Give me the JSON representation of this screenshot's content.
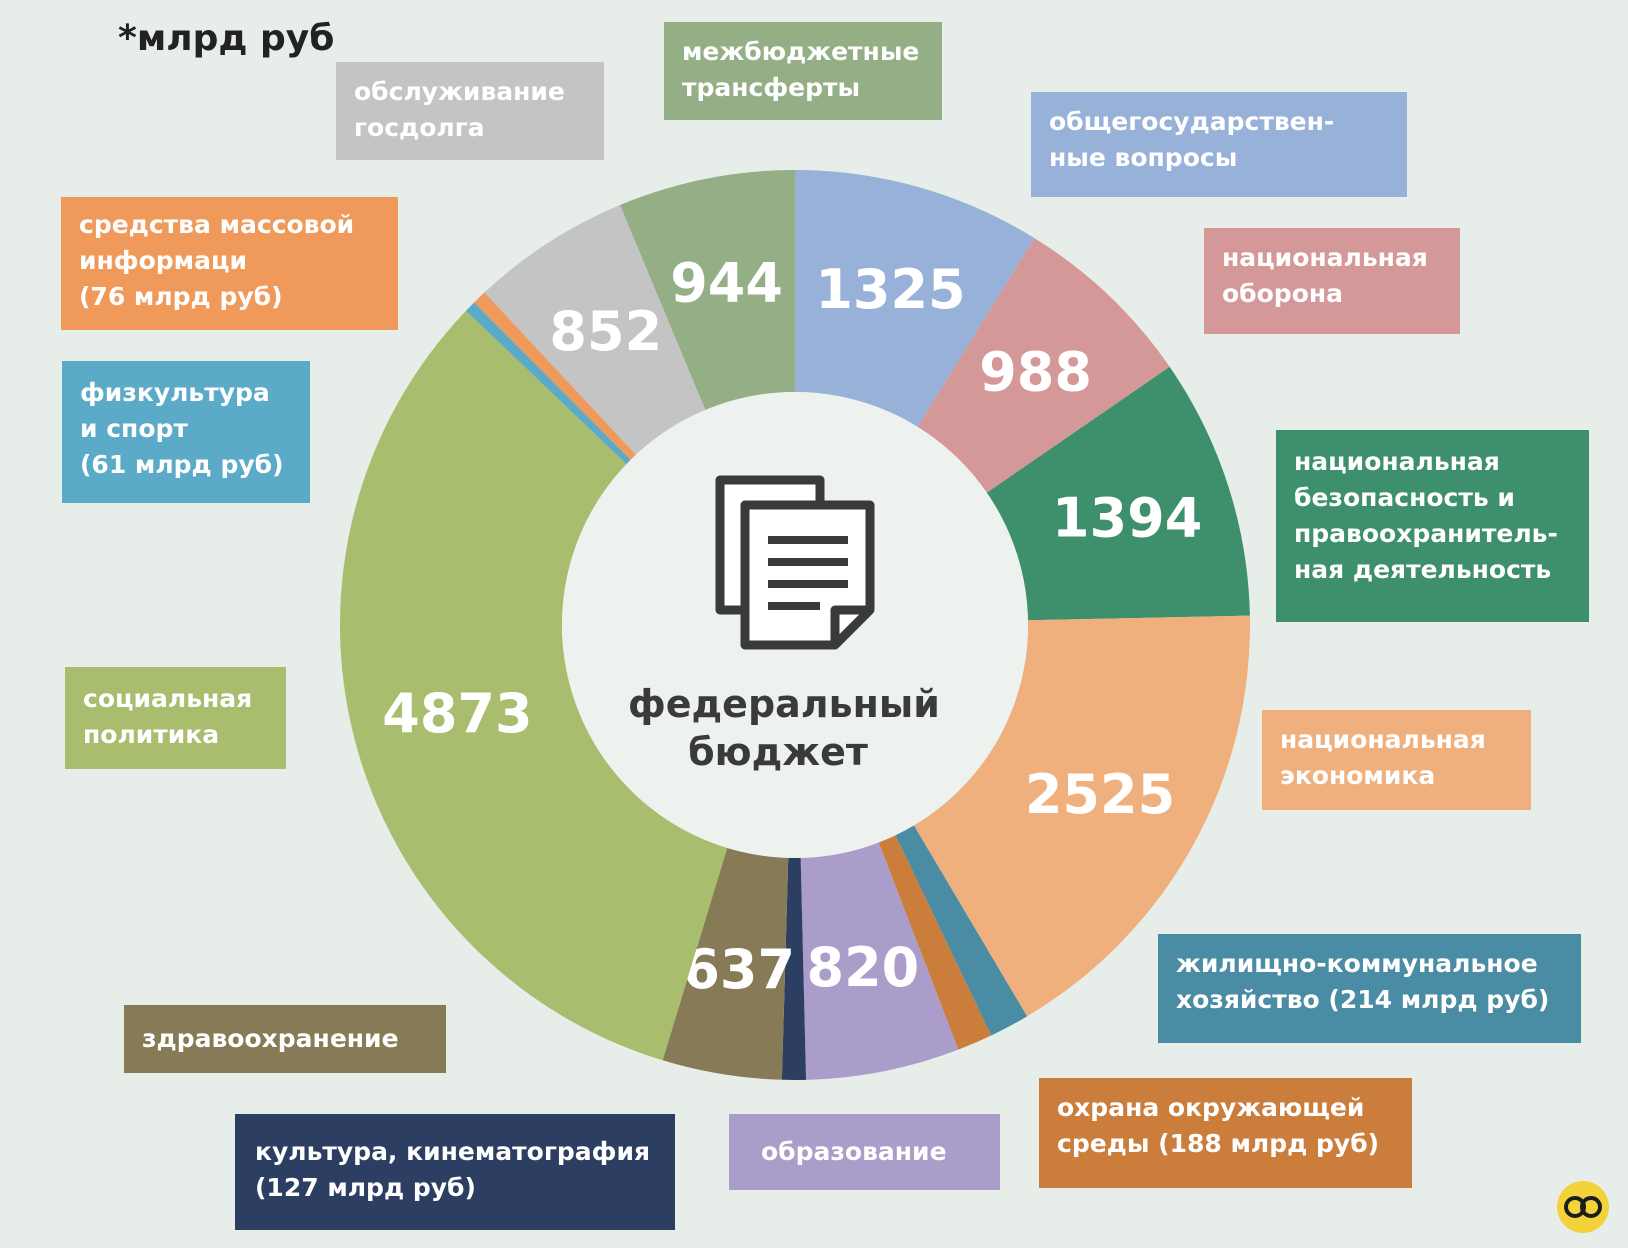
{
  "unit_note": "*млрд руб",
  "center_title": "федеральный\nбюджет",
  "chart_data": {
    "type": "pie",
    "donut": true,
    "start_angle_deg": 0,
    "direction": "clockwise",
    "slices": [
      {
        "label": "общегосударствен-\nные вопросы",
        "value": 1325,
        "value_label": "1325",
        "color": "#97b1d9",
        "show_value": true
      },
      {
        "label": "национальная\nоборона",
        "value": 988,
        "value_label": "988",
        "color": "#d49899",
        "show_value": true
      },
      {
        "label": "национальная\nбезопасность и\nправоохранитель-\nная деятельность",
        "value": 1394,
        "value_label": "1394",
        "color": "#3e8f6b",
        "show_value": true
      },
      {
        "label": "национальная\nэкономика",
        "value": 2525,
        "value_label": "2525",
        "color": "#efb07d",
        "show_value": true
      },
      {
        "label": "жилищно-коммунальное\nхозяйство (214 млрд руб)",
        "value": 214,
        "value_label": "",
        "color": "#4a8ca4",
        "show_value": false
      },
      {
        "label": "охрана окружающей\nсреды (188 млрд руб)",
        "value": 188,
        "value_label": "",
        "color": "#cb7d3c",
        "show_value": false
      },
      {
        "label": "образование",
        "value": 820,
        "value_label": "820",
        "color": "#ab9dca",
        "show_value": true
      },
      {
        "label": "культура, кинематография\n(127 млрд руб)",
        "value": 127,
        "value_label": "",
        "color": "#2c3e61",
        "show_value": false
      },
      {
        "label": "здравоохранение",
        "value": 637,
        "value_label": "637",
        "color": "#877b57",
        "show_value": true
      },
      {
        "label": "социальная\nполитика",
        "value": 4873,
        "value_label": "4873",
        "color": "#a9bd6e",
        "show_value": true
      },
      {
        "label": "физкультура\nи спорт\n(61 млрд руб)",
        "value": 61,
        "value_label": "",
        "color": "#5aaac8",
        "show_value": false
      },
      {
        "label": "средства массовой\nинформаци\n(76 млрд руб)",
        "value": 76,
        "value_label": "",
        "color": "#ef9a5b",
        "show_value": false
      },
      {
        "label": "обслуживание\nгосдолга",
        "value": 852,
        "value_label": "852",
        "color": "#c4c4c4",
        "show_value": true
      },
      {
        "label": "межбюджетные\nтрансферты",
        "value": 944,
        "value_label": "944",
        "color": "#94ae86",
        "show_value": true
      }
    ]
  }
}
